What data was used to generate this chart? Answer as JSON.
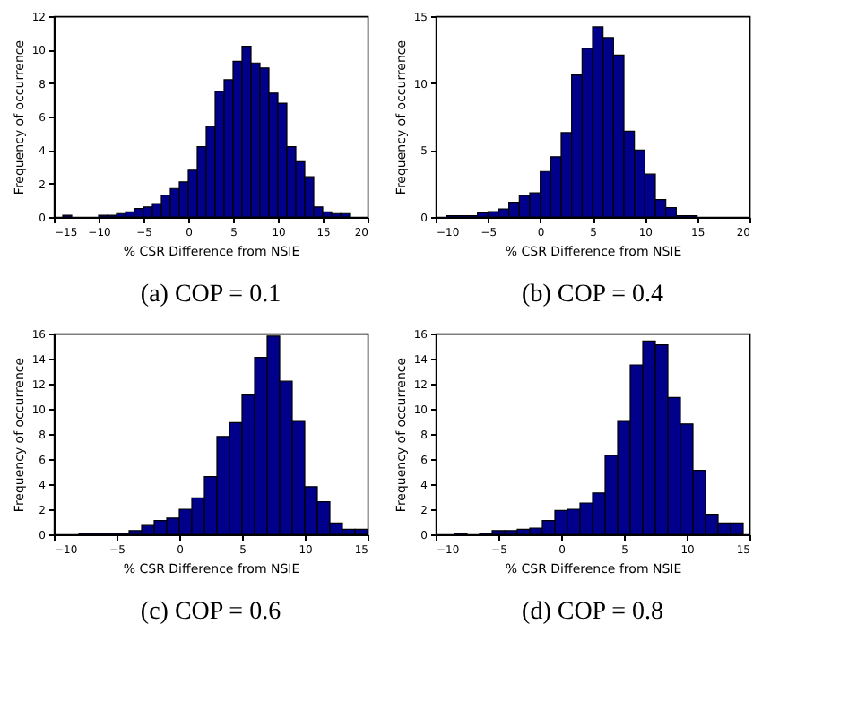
{
  "chart_data": [
    {
      "type": "histogram",
      "title": "(a) COP = 0.1",
      "xlabel": "% CSR Difference from NSIE",
      "ylabel": "Frequency of occurrence",
      "color": "#00008b",
      "grid": false,
      "bins": [
        -14,
        -13,
        -12,
        -11,
        -10,
        -9,
        -8,
        -7,
        -6,
        -5,
        -4,
        -3,
        -2,
        -1,
        0,
        1,
        2,
        3,
        4,
        5,
        6,
        7,
        8,
        9,
        10,
        11,
        12,
        13,
        14,
        15,
        16,
        17,
        18
      ],
      "values": [
        0.1,
        0,
        0,
        0,
        0.1,
        0.1,
        0.2,
        0.3,
        0.5,
        0.6,
        0.8,
        1.3,
        1.7,
        2.1,
        2.8,
        4.2,
        5.4,
        7.5,
        8.2,
        9.3,
        10.2,
        9.2,
        8.9,
        7.4,
        6.8,
        4.2,
        3.3,
        2.4,
        0.6,
        0.3,
        0.2,
        0.2
      ],
      "xlim": [
        -15,
        20
      ],
      "xticks": [
        -15,
        -10,
        -5,
        0,
        5,
        10,
        15,
        20
      ],
      "ylim": [
        0,
        12
      ],
      "yticks": [
        0,
        2,
        4,
        6,
        8,
        10,
        12
      ]
    },
    {
      "type": "histogram",
      "title": "(b) COP = 0.4",
      "xlabel": "% CSR Difference from NSIE",
      "ylabel": "Frequency of occurrence",
      "color": "#00008b",
      "grid": false,
      "bins": [
        -9,
        -8,
        -7,
        -6,
        -5,
        -4,
        -3,
        -2,
        -1,
        0,
        1,
        2,
        3,
        4,
        5,
        6,
        7,
        8,
        9,
        10,
        11,
        12,
        13,
        14,
        15
      ],
      "values": [
        0.1,
        0.1,
        0.1,
        0.3,
        0.4,
        0.6,
        1.1,
        1.6,
        1.8,
        3.4,
        4.5,
        6.3,
        10.6,
        12.6,
        14.2,
        13.4,
        12.1,
        6.4,
        5.0,
        3.2,
        1.3,
        0.7,
        0.1,
        0.1
      ],
      "xlim": [
        -10,
        20
      ],
      "xticks": [
        -10,
        -5,
        0,
        5,
        10,
        15,
        20
      ],
      "ylim": [
        0,
        15
      ],
      "yticks": [
        0,
        5,
        10,
        15
      ]
    },
    {
      "type": "histogram",
      "title": "(c) COP = 0.6",
      "xlabel": "% CSR Difference from NSIE",
      "ylabel": "Frequency of occurrence",
      "color": "#00008b",
      "grid": false,
      "bins": [
        -8,
        -7,
        -6,
        -5,
        -4,
        -3,
        -2,
        -1,
        0,
        1,
        2,
        3,
        4,
        5,
        6,
        7,
        8,
        9,
        10,
        11,
        12,
        13,
        14,
        15
      ],
      "values": [
        0.1,
        0.1,
        0.1,
        0.1,
        0.3,
        0.7,
        1.1,
        1.3,
        2.0,
        2.9,
        4.6,
        7.8,
        8.9,
        11.1,
        14.1,
        15.8,
        12.2,
        9.0,
        3.8,
        2.6,
        0.9,
        0.4,
        0.4
      ],
      "xlim": [
        -10,
        15
      ],
      "xticks": [
        -10,
        -5,
        0,
        5,
        10,
        15
      ],
      "ylim": [
        0,
        16
      ],
      "yticks": [
        0,
        2,
        4,
        6,
        8,
        10,
        12,
        14,
        16
      ]
    },
    {
      "type": "histogram",
      "title": "(d) COP = 0.8",
      "xlabel": "% CSR Difference from NSIE",
      "ylabel": "Frequency of occurrence",
      "color": "#00008b",
      "grid": false,
      "bins": [
        -8.5,
        -7.5,
        -6.5,
        -5.5,
        -4.5,
        -3.5,
        -2.5,
        -1.5,
        -0.5,
        0.5,
        1.5,
        2.5,
        3.5,
        4.5,
        5.5,
        6.5,
        7.5,
        8.5,
        9.5,
        10.5,
        11.5,
        12.5,
        13.5,
        14.5
      ],
      "values": [
        0.1,
        0,
        0.1,
        0.3,
        0.3,
        0.4,
        0.5,
        1.1,
        1.9,
        2.0,
        2.5,
        3.3,
        6.3,
        9.0,
        13.5,
        15.4,
        15.1,
        10.9,
        8.8,
        5.1,
        1.6,
        0.9,
        0.9
      ],
      "xlim": [
        -10,
        15
      ],
      "xticks": [
        -10,
        -5,
        0,
        5,
        10,
        15
      ],
      "ylim": [
        0,
        16
      ],
      "yticks": [
        0,
        2,
        4,
        6,
        8,
        10,
        12,
        14,
        16
      ]
    }
  ]
}
